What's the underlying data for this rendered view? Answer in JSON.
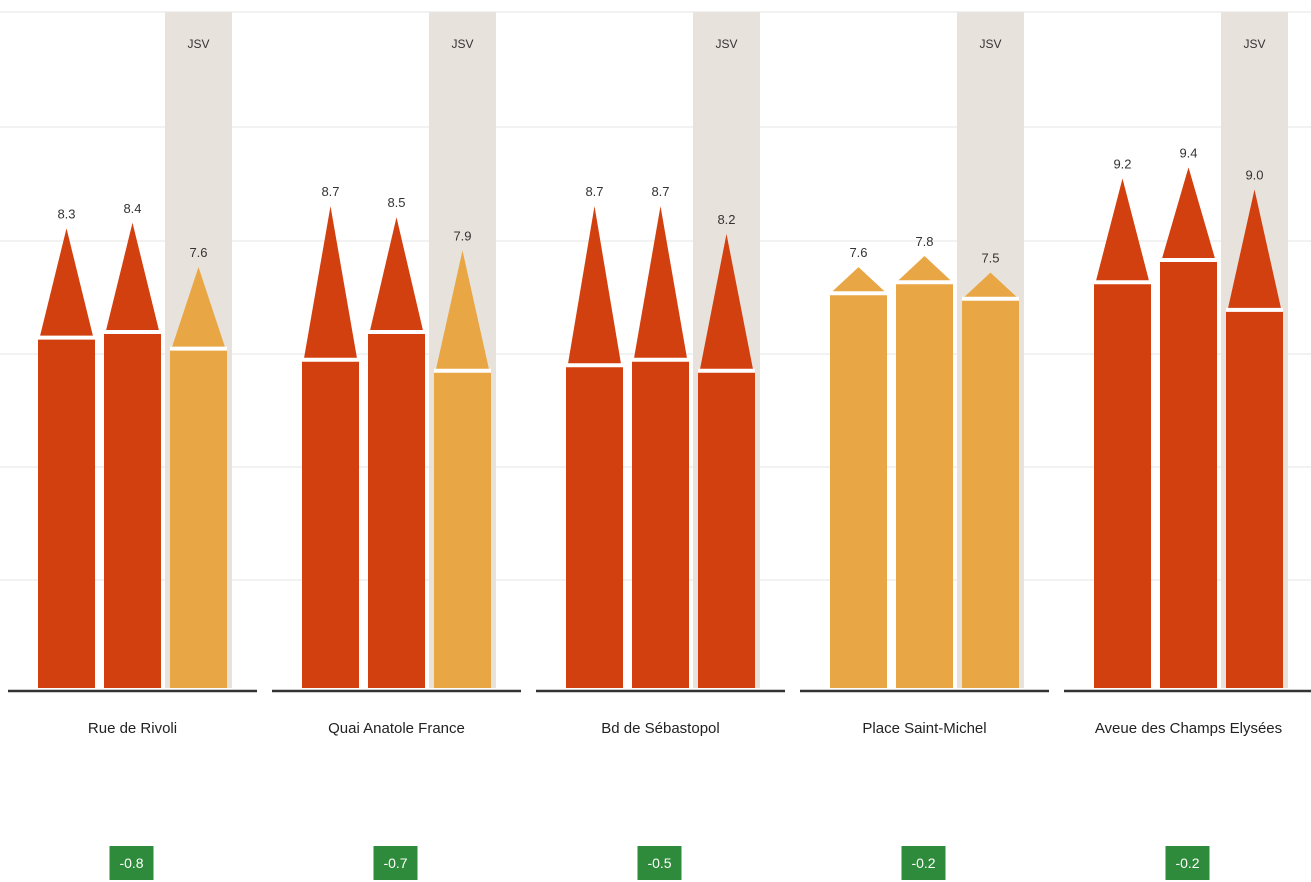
{
  "colors": {
    "dark": "#d2400f",
    "light": "#e8a644",
    "shade": "#e8e2dc",
    "grid": "#eeeeee",
    "baseline": "#333333",
    "badge": "#2e8b3c"
  },
  "chart_data": {
    "type": "bar",
    "shade_label": "JSV",
    "ylim": [
      0,
      12
    ],
    "grid": true,
    "groups": [
      {
        "location": "Rue de Rivoli",
        "diff": "-0.8",
        "bars": [
          {
            "label": "8.3",
            "value": 8.3,
            "body_value": 6.3,
            "color": "dark"
          },
          {
            "label": "8.4",
            "value": 8.4,
            "body_value": 6.4,
            "color": "dark"
          },
          {
            "label": "7.6",
            "value": 7.6,
            "body_value": 6.1,
            "color": "light"
          }
        ]
      },
      {
        "location": "Quai Anatole France",
        "diff": "-0.7",
        "bars": [
          {
            "label": "8.7",
            "value": 8.7,
            "body_value": 5.9,
            "color": "dark"
          },
          {
            "label": "8.5",
            "value": 8.5,
            "body_value": 6.4,
            "color": "dark"
          },
          {
            "label": "7.9",
            "value": 7.9,
            "body_value": 5.7,
            "color": "light"
          }
        ]
      },
      {
        "location": "Bd de Sébastopol",
        "diff": "-0.5",
        "bars": [
          {
            "label": "8.7",
            "value": 8.7,
            "body_value": 5.8,
            "color": "dark"
          },
          {
            "label": "8.7",
            "value": 8.7,
            "body_value": 5.9,
            "color": "dark"
          },
          {
            "label": "8.2",
            "value": 8.2,
            "body_value": 5.7,
            "color": "dark"
          }
        ]
      },
      {
        "location": "Place Saint-Michel",
        "diff": "-0.2",
        "bars": [
          {
            "label": "7.6",
            "value": 7.6,
            "body_value": 7.1,
            "color": "light"
          },
          {
            "label": "7.8",
            "value": 7.8,
            "body_value": 7.3,
            "color": "light"
          },
          {
            "label": "7.5",
            "value": 7.5,
            "body_value": 7.0,
            "color": "light"
          }
        ]
      },
      {
        "location": "Aveue des Champs Elysées",
        "diff": "-0.2",
        "bars": [
          {
            "label": "9.2",
            "value": 9.2,
            "body_value": 7.3,
            "color": "dark"
          },
          {
            "label": "9.4",
            "value": 9.4,
            "body_value": 7.7,
            "color": "dark"
          },
          {
            "label": "9.0",
            "value": 9.0,
            "body_value": 6.8,
            "color": "dark"
          }
        ]
      }
    ]
  }
}
